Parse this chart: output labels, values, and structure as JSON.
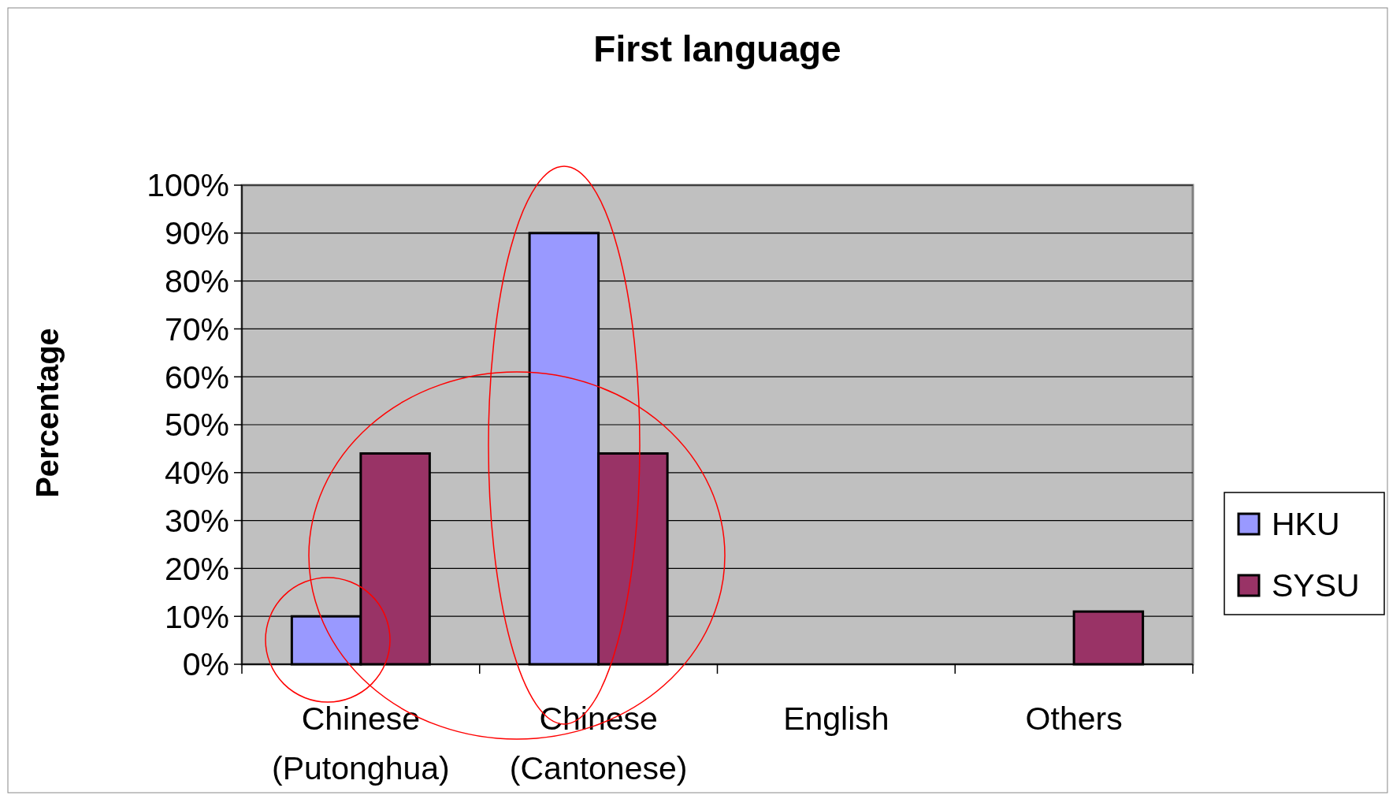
{
  "chart_data": {
    "type": "bar",
    "title": "First language",
    "ylabel": "Percentage",
    "categories": [
      "Chinese (Putonghua)",
      "Chinese (Cantonese)",
      "English",
      "Others"
    ],
    "series": [
      {
        "name": "HKU",
        "color": "#9999ff",
        "values": [
          10,
          90,
          0,
          0
        ]
      },
      {
        "name": "SYSU",
        "color": "#993366",
        "values": [
          44,
          44,
          0,
          11
        ]
      }
    ],
    "ylim": [
      0,
      100
    ],
    "yticks": [
      {
        "value": 0,
        "label": "0%"
      },
      {
        "value": 10,
        "label": "10%"
      },
      {
        "value": 20,
        "label": "20%"
      },
      {
        "value": 30,
        "label": "30%"
      },
      {
        "value": 40,
        "label": "40%"
      },
      {
        "value": 50,
        "label": "50%"
      },
      {
        "value": 60,
        "label": "60%"
      },
      {
        "value": 70,
        "label": "70%"
      },
      {
        "value": 80,
        "label": "80%"
      },
      {
        "value": 90,
        "label": "90%"
      },
      {
        "value": 100,
        "label": "100%"
      }
    ],
    "grid": "y",
    "legend": "right"
  }
}
